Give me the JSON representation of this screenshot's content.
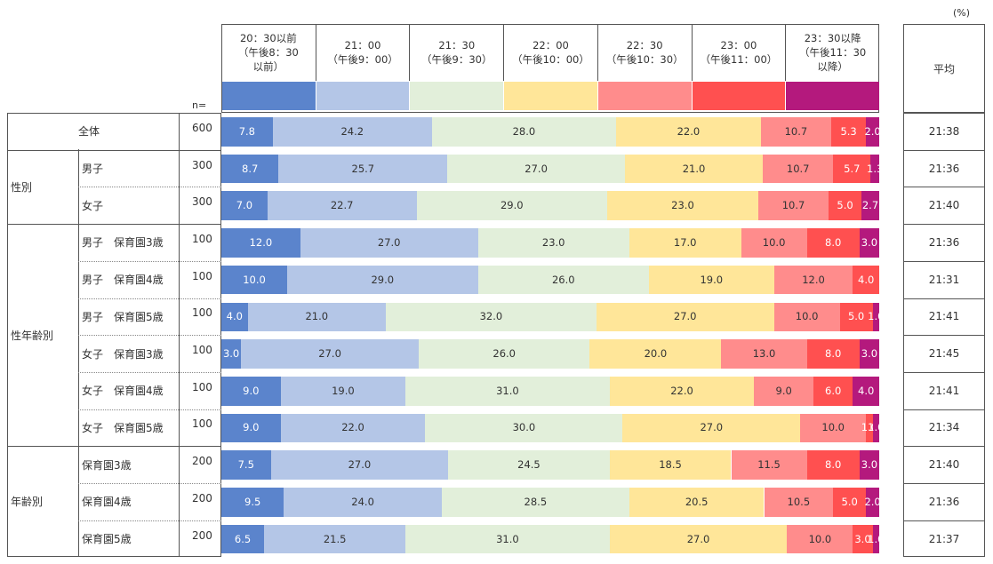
{
  "unit_label": "(%)",
  "n_header": "n=",
  "avg_header": "平均",
  "chart_data": {
    "type": "bar",
    "stacked": true,
    "orientation": "horizontal",
    "categories": [
      "20：30以前\n（午後8：30\n以前）",
      "21：00\n（午後9：00）",
      "21：30\n（午後9：30）",
      "22：00\n（午後10：00）",
      "22：30\n（午後10：30）",
      "23：00\n（午後11：00）",
      "23：30以降\n（午後11：30\n以降）"
    ],
    "colors": [
      "#5b84cc",
      "#b4c6e7",
      "#e2efda",
      "#ffe699",
      "#ff8c8c",
      "#ff5050",
      "#b4197d"
    ],
    "rows": [
      {
        "group": "",
        "label": "全体",
        "n": "600",
        "avg": "21:38",
        "values": [
          7.8,
          24.2,
          28.0,
          22.0,
          10.7,
          5.3,
          2.0
        ],
        "labels": [
          "7.8",
          "24.2",
          "28.0",
          "22.0",
          "10.7",
          "5.3",
          "2.0"
        ]
      },
      {
        "group": "性別",
        "label": "男子",
        "n": "300",
        "avg": "21:36",
        "values": [
          8.7,
          25.7,
          27.0,
          21.0,
          10.7,
          5.7,
          1.3
        ],
        "labels": [
          "8.7",
          "25.7",
          "27.0",
          "21.0",
          "10.7",
          "5.7",
          "1.3"
        ]
      },
      {
        "group": "性別",
        "label": "女子",
        "n": "300",
        "avg": "21:40",
        "values": [
          7.0,
          22.7,
          29.0,
          23.0,
          10.7,
          5.0,
          2.7
        ],
        "labels": [
          "7.0",
          "22.7",
          "29.0",
          "23.0",
          "10.7",
          "5.0",
          "2.7"
        ]
      },
      {
        "group": "性年齢別",
        "label": "男子　保育園3歳",
        "n": "100",
        "avg": "21:36",
        "values": [
          12.0,
          27.0,
          23.0,
          17.0,
          10.0,
          8.0,
          3.0
        ],
        "labels": [
          "12.0",
          "27.0",
          "23.0",
          "17.0",
          "10.0",
          "8.0",
          "3.0"
        ]
      },
      {
        "group": "性年齢別",
        "label": "男子　保育園4歳",
        "n": "100",
        "avg": "21:31",
        "values": [
          10.0,
          29.0,
          26.0,
          19.0,
          12.0,
          4.0,
          0
        ],
        "labels": [
          "10.0",
          "29.0",
          "26.0",
          "19.0",
          "12.0",
          "4.0",
          ""
        ]
      },
      {
        "group": "性年齢別",
        "label": "男子　保育園5歳",
        "n": "100",
        "avg": "21:41",
        "values": [
          4.0,
          21.0,
          32.0,
          27.0,
          10.0,
          5.0,
          1.0
        ],
        "labels": [
          "4.0",
          "21.0",
          "32.0",
          "27.0",
          "10.0",
          "5.0",
          "1.0"
        ]
      },
      {
        "group": "性年齢別",
        "label": "女子　保育園3歳",
        "n": "100",
        "avg": "21:45",
        "values": [
          3.0,
          27.0,
          26.0,
          20.0,
          13.0,
          8.0,
          3.0
        ],
        "labels": [
          "3.0",
          "27.0",
          "26.0",
          "20.0",
          "13.0",
          "8.0",
          "3.0"
        ]
      },
      {
        "group": "性年齢別",
        "label": "女子　保育園4歳",
        "n": "100",
        "avg": "21:41",
        "values": [
          9.0,
          19.0,
          31.0,
          22.0,
          9.0,
          6.0,
          4.0
        ],
        "labels": [
          "9.0",
          "19.0",
          "31.0",
          "22.0",
          "9.0",
          "6.0",
          "4.0"
        ]
      },
      {
        "group": "性年齢別",
        "label": "女子　保育園5歳",
        "n": "100",
        "avg": "21:34",
        "values": [
          9.0,
          22.0,
          30.0,
          27.0,
          10.0,
          1.0,
          1.0
        ],
        "labels": [
          "9.0",
          "22.0",
          "30.0",
          "27.0",
          "10.0",
          "1.0",
          "1.0"
        ]
      },
      {
        "group": "年齢別",
        "label": "保育園3歳",
        "n": "200",
        "avg": "21:40",
        "values": [
          7.5,
          27.0,
          24.5,
          18.5,
          11.5,
          8.0,
          3.0
        ],
        "labels": [
          "7.5",
          "27.0",
          "24.5",
          "18.5",
          "11.5",
          "8.0",
          "3.0"
        ]
      },
      {
        "group": "年齢別",
        "label": "保育園4歳",
        "n": "200",
        "avg": "21:36",
        "values": [
          9.5,
          24.0,
          28.5,
          20.5,
          10.5,
          5.0,
          2.0
        ],
        "labels": [
          "9.5",
          "24.0",
          "28.5",
          "20.5",
          "10.5",
          "5.0",
          "2.0"
        ]
      },
      {
        "group": "年齢別",
        "label": "保育園5歳",
        "n": "200",
        "avg": "21:37",
        "values": [
          6.5,
          21.5,
          31.0,
          27.0,
          10.0,
          3.0,
          1.0
        ],
        "labels": [
          "6.5",
          "21.5",
          "31.0",
          "27.0",
          "10.0",
          "3.0",
          "1.0"
        ]
      }
    ],
    "groups": [
      "性別",
      "性年齢別",
      "年齢別"
    ],
    "xlim": [
      0,
      100
    ]
  }
}
